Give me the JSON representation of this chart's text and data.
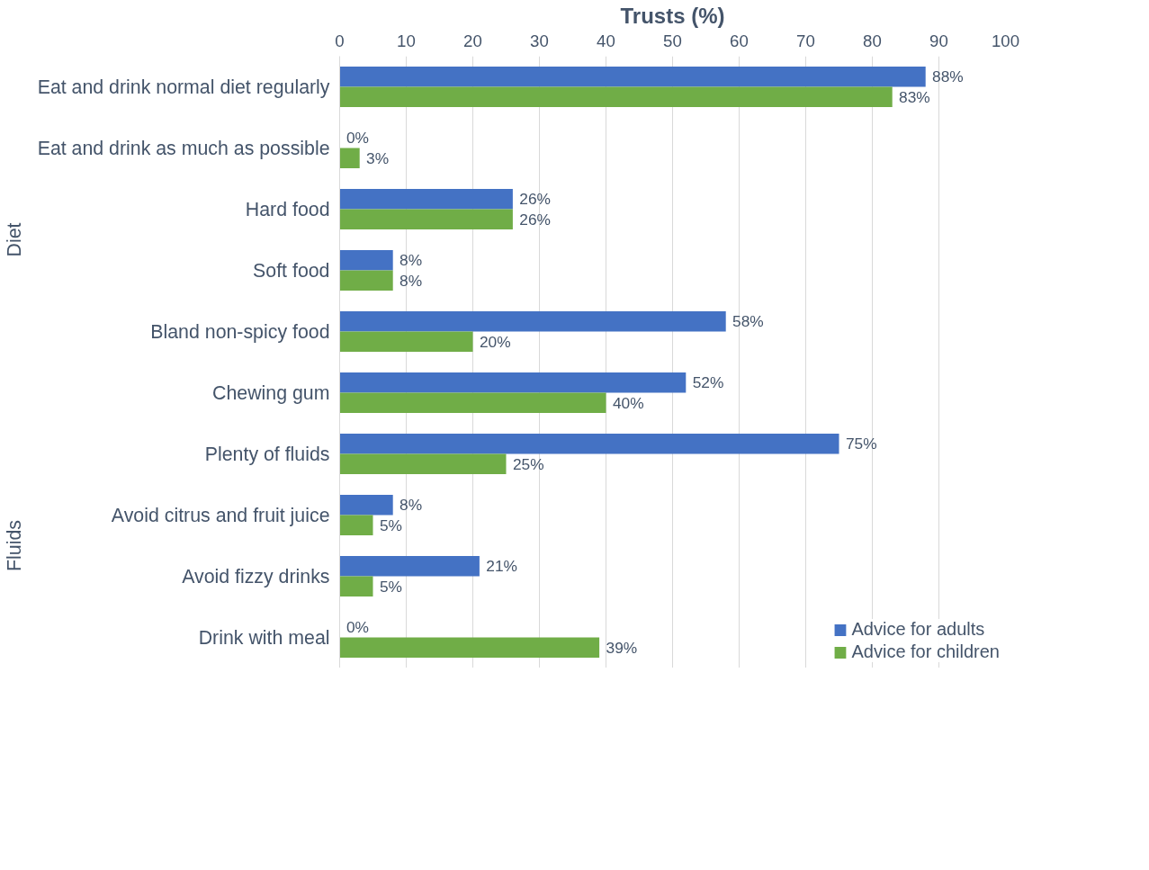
{
  "chart_data": {
    "type": "bar",
    "orientation": "horizontal",
    "xlabel": "Trusts (%)",
    "categories": [
      "Eat and drink normal diet regularly",
      "Eat and drink as much as possible",
      "Hard food",
      "Soft food",
      "Bland non-spicy food",
      "Chewing gum",
      "Plenty of fluids",
      "Avoid citrus and fruit juice",
      "Avoid fizzy drinks",
      "Drink with meal"
    ],
    "series": [
      {
        "name": "Advice for adults",
        "color": "#4472c4",
        "values": [
          88,
          0,
          26,
          8,
          58,
          52,
          75,
          8,
          21,
          0
        ],
        "value_labels": [
          "88%",
          "0%",
          "26%",
          "8%",
          "58%",
          "52%",
          "75%",
          "8%",
          "21%",
          "0%"
        ]
      },
      {
        "name": "Advice for children",
        "color": "#70ad47",
        "values": [
          83,
          3,
          26,
          8,
          20,
          40,
          25,
          5,
          5,
          39
        ],
        "value_labels": [
          "83%",
          "3%",
          "26%",
          "8%",
          "20%",
          "40%",
          "25%",
          "5%",
          "5%",
          "39%"
        ]
      }
    ],
    "xlim": [
      0,
      100
    ],
    "xticks": [
      0,
      10,
      20,
      30,
      40,
      50,
      60,
      70,
      80,
      90,
      100
    ],
    "grid": "x",
    "legend": "bottom right",
    "annotations": [
      "Diet",
      "Fluids"
    ]
  }
}
